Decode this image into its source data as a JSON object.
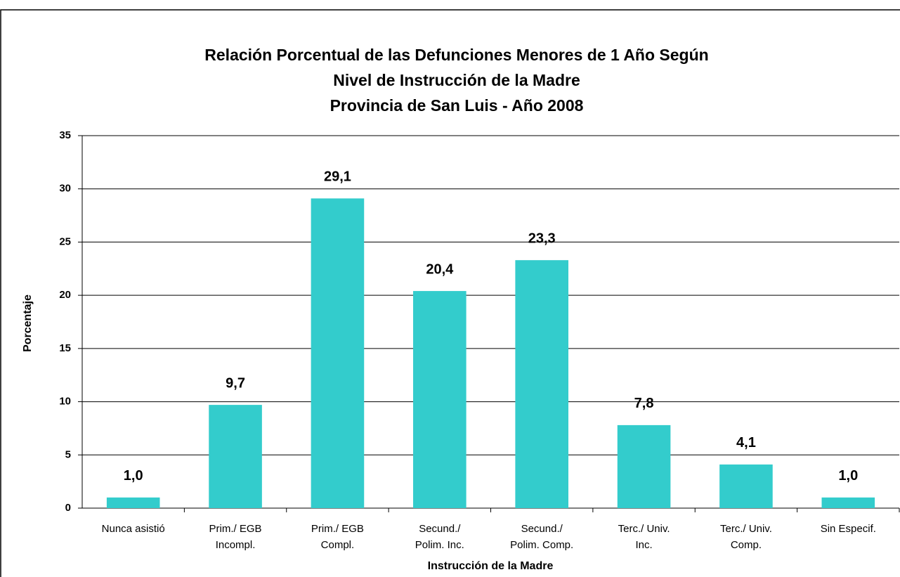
{
  "chart_data": {
    "type": "bar",
    "title": [
      "Relación Porcentual de las Defunciones Menores de 1 Año Según",
      "Nivel de Instrucción de la Madre",
      "Provincia de San Luis - Año 2008"
    ],
    "x_label": "Instrucción de la Madre",
    "y_label": "Porcentaje",
    "categories": [
      [
        "Nunca asistió"
      ],
      [
        "Prim./ EGB",
        "Incompl."
      ],
      [
        "Prim./ EGB",
        "Compl."
      ],
      [
        "Secund./",
        "Polim. Inc."
      ],
      [
        "Secund./",
        "Polim. Comp."
      ],
      [
        "Terc./ Univ.",
        "Inc."
      ],
      [
        "Terc./ Univ.",
        "Comp."
      ],
      [
        "Sin Especif."
      ]
    ],
    "values": [
      1.0,
      9.7,
      29.1,
      20.4,
      23.3,
      7.8,
      4.1,
      1.0
    ],
    "value_labels": [
      "1,0",
      "9,7",
      "29,1",
      "20,4",
      "23,3",
      "7,8",
      "4,1",
      "1,0"
    ],
    "color": "#33cccc",
    "ylim": [
      0,
      35
    ],
    "yticks": [
      0,
      5,
      10,
      15,
      20,
      25,
      30,
      35
    ],
    "grid": true
  }
}
